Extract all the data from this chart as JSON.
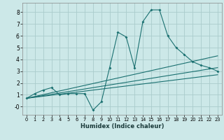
{
  "xlabel": "Humidex (Indice chaleur)",
  "bg_color": "#cce8e8",
  "grid_color": "#aacccc",
  "line_color": "#1a7070",
  "xlim": [
    -0.5,
    23.5
  ],
  "ylim": [
    -0.7,
    8.8
  ],
  "xticks": [
    0,
    1,
    2,
    3,
    4,
    5,
    6,
    7,
    8,
    9,
    10,
    11,
    12,
    13,
    14,
    15,
    16,
    17,
    18,
    19,
    20,
    21,
    22,
    23
  ],
  "yticks": [
    0,
    1,
    2,
    3,
    4,
    5,
    6,
    7,
    8
  ],
  "ytick_labels": [
    "-0",
    "1",
    "2",
    "3",
    "4",
    "5",
    "6",
    "7",
    "8"
  ],
  "series": [
    {
      "x": [
        0,
        1,
        2,
        3,
        4,
        5,
        6,
        7,
        8,
        9,
        10,
        11,
        12,
        13,
        14,
        15,
        16,
        17,
        18,
        19,
        20,
        21,
        22,
        23
      ],
      "y": [
        0.7,
        1.1,
        1.4,
        1.6,
        1.0,
        1.1,
        1.1,
        1.1,
        -0.3,
        0.4,
        3.3,
        6.3,
        5.9,
        3.3,
        7.2,
        8.2,
        8.2,
        6.0,
        5.0,
        4.4,
        3.8,
        3.5,
        3.3,
        3.0
      ],
      "has_markers": true
    },
    {
      "x": [
        0,
        23
      ],
      "y": [
        0.7,
        4.3
      ],
      "has_markers": false
    },
    {
      "x": [
        0,
        23
      ],
      "y": [
        0.7,
        3.3
      ],
      "has_markers": false
    },
    {
      "x": [
        0,
        23
      ],
      "y": [
        0.7,
        2.7
      ],
      "has_markers": false
    }
  ]
}
